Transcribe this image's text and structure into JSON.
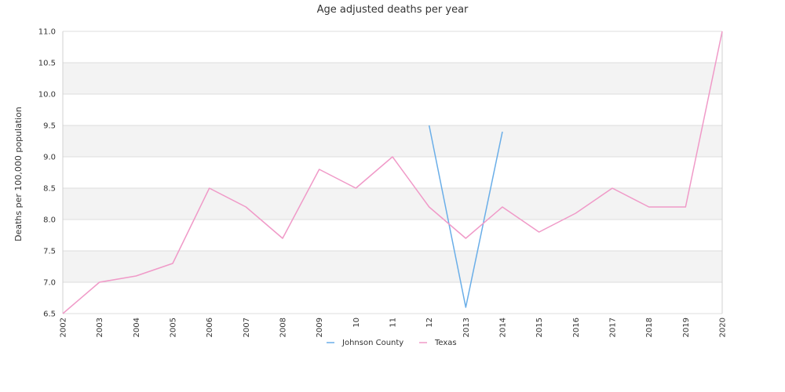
{
  "chart_data": {
    "type": "line",
    "title": "Age adjusted deaths per year",
    "xlabel": "",
    "ylabel": "Deaths per 100,000 population",
    "ylim": [
      6.5,
      11.0
    ],
    "yticks": [
      "6.5",
      "7.0",
      "7.5",
      "8.0",
      "8.5",
      "9.0",
      "9.5",
      "10.0",
      "10.5",
      "11.0"
    ],
    "categories": [
      "2002",
      "2003",
      "2004",
      "2005",
      "2006",
      "2007",
      "2008",
      "2009",
      "10",
      "11",
      "12",
      "2013",
      "2014",
      "2015",
      "2016",
      "2017",
      "2018",
      "2019",
      "2020"
    ],
    "series": [
      {
        "name": "Johnson County",
        "color": "#6aaee8",
        "values": [
          null,
          null,
          null,
          null,
          null,
          null,
          null,
          null,
          null,
          null,
          9.5,
          6.6,
          9.4,
          null,
          null,
          null,
          null,
          null,
          null
        ]
      },
      {
        "name": "Texas",
        "color": "#f09ac8",
        "values": [
          6.5,
          7.0,
          7.1,
          7.3,
          8.5,
          8.2,
          7.7,
          8.8,
          8.5,
          9.0,
          8.2,
          7.7,
          8.2,
          7.8,
          8.1,
          8.5,
          8.2,
          8.2,
          11.0
        ]
      }
    ],
    "grid": true,
    "legend": "bottom-center"
  }
}
